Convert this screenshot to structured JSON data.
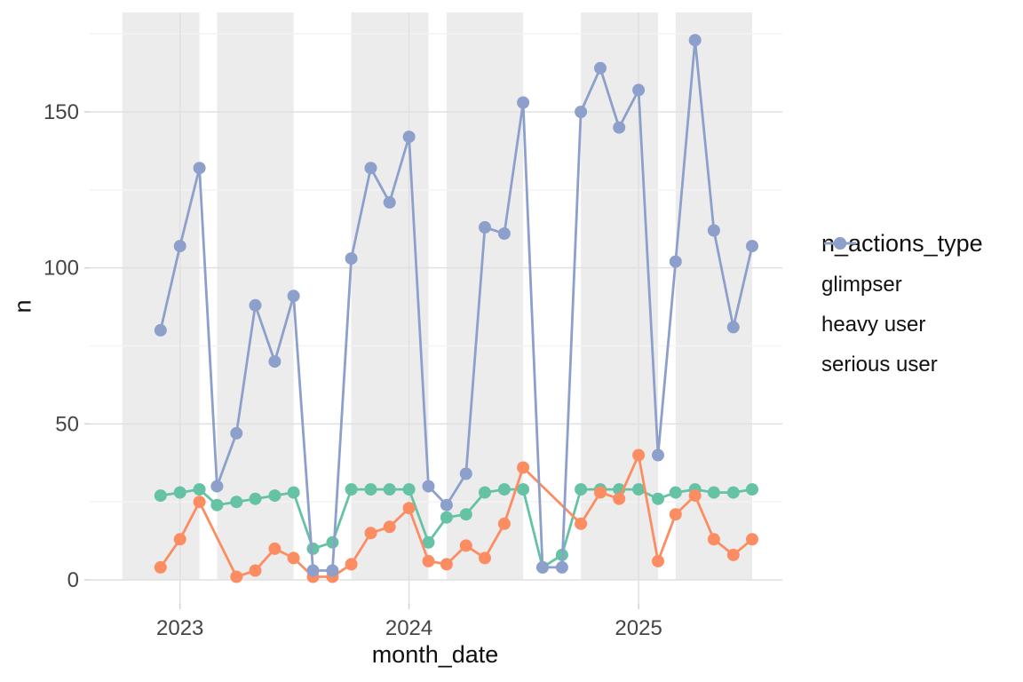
{
  "figure": {
    "background": "#ffffff"
  },
  "chart_data": {
    "type": "line",
    "title": "",
    "x_axis": {
      "label": "month_date",
      "tick_labels": [
        "2023",
        "2024",
        "2025"
      ],
      "tick_dates": [
        "2023-01-01",
        "2024-01-01",
        "2025-01-01"
      ],
      "domain": [
        "2022-10-01",
        "2025-07-01"
      ]
    },
    "y_axis": {
      "label": "n",
      "tick_labels": [
        "0",
        "50",
        "100",
        "150"
      ],
      "ticks": [
        0,
        50,
        100,
        150
      ],
      "minor_ticks": [
        25,
        75,
        125,
        175
      ],
      "ylim": [
        -8,
        182
      ]
    },
    "x": [
      "2022-12-01",
      "2023-01-01",
      "2023-02-01",
      "2023-03-01",
      "2023-04-01",
      "2023-05-01",
      "2023-06-01",
      "2023-07-01",
      "2023-08-01",
      "2023-09-01",
      "2023-10-01",
      "2023-11-01",
      "2023-12-01",
      "2024-01-01",
      "2024-02-01",
      "2024-03-01",
      "2024-04-01",
      "2024-05-01",
      "2024-06-01",
      "2024-07-01",
      "2024-08-01",
      "2024-09-01",
      "2024-10-01",
      "2024-11-01",
      "2024-12-01",
      "2025-01-01",
      "2025-02-01",
      "2025-03-01",
      "2025-04-01",
      "2025-05-01",
      "2025-06-01",
      "2025-07-01"
    ],
    "series": [
      {
        "name": "glimpser",
        "color": "#66C2A5",
        "values": [
          27,
          28,
          29,
          24,
          25,
          26,
          27,
          28,
          10,
          12,
          29,
          29,
          29,
          29,
          12,
          20,
          21,
          28,
          29,
          29,
          4,
          8,
          29,
          29,
          29,
          29,
          26,
          28,
          29,
          28,
          28,
          29
        ]
      },
      {
        "name": "heavy user",
        "color": "#FC8D62",
        "values": [
          4,
          13,
          25,
          null,
          1,
          3,
          10,
          7,
          1,
          1,
          5,
          15,
          17,
          23,
          6,
          5,
          11,
          7,
          18,
          36,
          null,
          null,
          18,
          28,
          26,
          40,
          6,
          21,
          27,
          13,
          8,
          13
        ]
      },
      {
        "name": "serious user",
        "color": "#8DA0CB",
        "values": [
          80,
          107,
          132,
          30,
          47,
          88,
          70,
          91,
          3,
          3,
          103,
          132,
          121,
          142,
          30,
          24,
          34,
          113,
          111,
          153,
          4,
          4,
          150,
          164,
          145,
          157,
          40,
          102,
          173,
          112,
          81,
          107
        ]
      }
    ],
    "highlight_bands": {
      "color": "#ECECEC",
      "ranges": [
        [
          "2022-10-01",
          "2023-02-01"
        ],
        [
          "2023-03-01",
          "2023-07-01"
        ],
        [
          "2023-10-01",
          "2024-02-01"
        ],
        [
          "2024-03-01",
          "2024-07-01"
        ],
        [
          "2024-10-01",
          "2025-02-01"
        ],
        [
          "2025-03-01",
          "2025-07-01"
        ]
      ]
    },
    "legend": {
      "title": "n_actions_type",
      "position": "right"
    },
    "grid": {
      "major_color": "#E0E0E0",
      "minor_color": "#F3F3F3",
      "tick_color": "#D2D2D2",
      "tick_text_color": "#454545"
    }
  }
}
